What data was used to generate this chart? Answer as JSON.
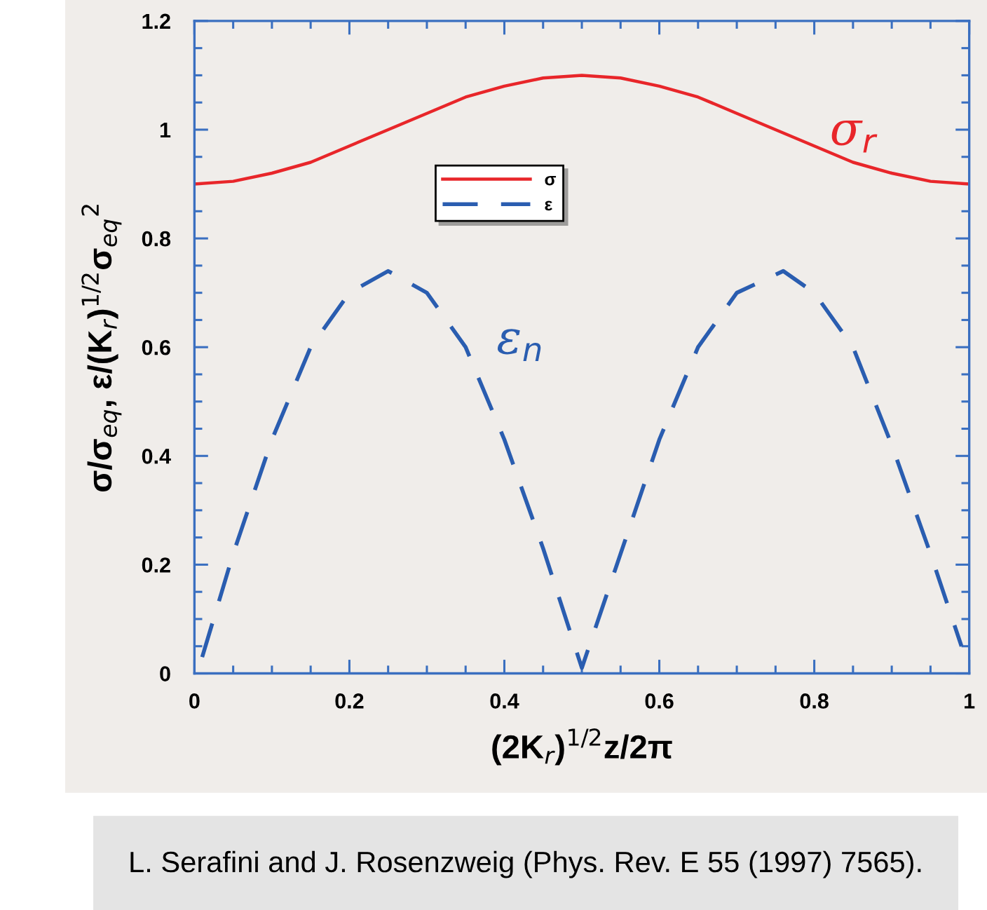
{
  "chart_data": {
    "type": "line",
    "xlabel": "(2K$_{r}$)$^{1/2}$z/2π",
    "ylabel": "σ/σ$_{eq}$, ε/(K$_{r}$)$^{1/2}$σ$_{eq}$$^{2}$",
    "xlim": [
      0,
      1
    ],
    "xticks": [
      0,
      0.2,
      0.4,
      0.6,
      0.8,
      1
    ],
    "ylim": [
      0,
      1.2
    ],
    "yticks": [
      0,
      0.2,
      0.4,
      0.6,
      0.8,
      1,
      1.2
    ],
    "grid": false,
    "legend": "top",
    "series": [
      {
        "name": "σ",
        "color": "#e8262a",
        "line_style": "solid",
        "x": [
          0,
          0.05,
          0.1,
          0.15,
          0.2,
          0.25,
          0.3,
          0.35,
          0.4,
          0.45,
          0.5,
          0.55,
          0.6,
          0.65,
          0.7,
          0.75,
          0.8,
          0.85,
          0.9,
          0.95,
          1
        ],
        "values": [
          0.9,
          0.905,
          0.92,
          0.94,
          0.97,
          1.0,
          1.03,
          1.06,
          1.08,
          1.095,
          1.1,
          1.095,
          1.08,
          1.06,
          1.03,
          1.0,
          0.97,
          0.94,
          0.92,
          0.905,
          0.9
        ]
      },
      {
        "name": "ε",
        "color": "#2a5db0",
        "line_style": "dashed",
        "x": [
          0.01,
          0.05,
          0.1,
          0.15,
          0.2,
          0.25,
          0.3,
          0.35,
          0.4,
          0.45,
          0.5,
          0.55,
          0.6,
          0.65,
          0.7,
          0.76,
          0.8,
          0.85,
          0.9,
          0.95,
          0.99
        ],
        "values": [
          0.03,
          0.22,
          0.43,
          0.6,
          0.7,
          0.74,
          0.7,
          0.6,
          0.43,
          0.23,
          0.01,
          0.22,
          0.43,
          0.6,
          0.7,
          0.74,
          0.7,
          0.6,
          0.42,
          0.22,
          0.05
        ]
      }
    ],
    "annotations": [
      "σ$_{r}$",
      "ε$_{n}$",
      "L. Serafini and J. Rosenzweig (Phys. Rev. E 55 (1997) 7565)."
    ]
  }
}
